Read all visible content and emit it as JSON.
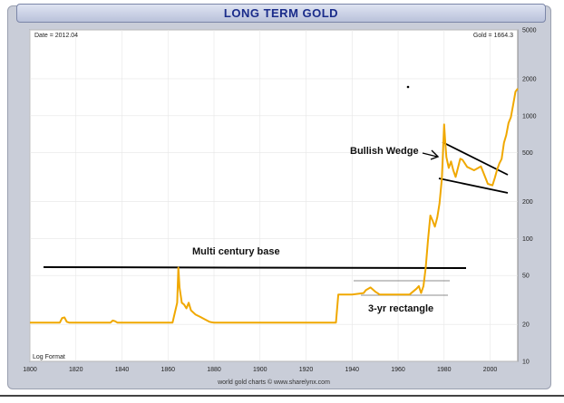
{
  "chart_data": {
    "type": "line",
    "title": "LONG TERM GOLD",
    "date_label": "Date = 2012.04",
    "value_label": "Gold = 1664.3",
    "scale_label": "Log Format",
    "footer": "world gold charts © www.sharelynx.com",
    "xlim": [
      1800,
      2012
    ],
    "ylim": [
      10,
      5000
    ],
    "yscale": "log",
    "x_ticks": [
      "1800",
      "1820",
      "1840",
      "1860",
      "1880",
      "1900",
      "1920",
      "1940",
      "1960",
      "1980",
      "2000"
    ],
    "y_ticks": [
      "10",
      "20",
      "50",
      "100",
      "200",
      "500",
      "1000",
      "2000",
      "5000"
    ],
    "series_color": "#f0a800",
    "series": [
      {
        "x": [
          1800,
          1813,
          1814,
          1815,
          1816,
          1817,
          1835,
          1836,
          1837,
          1838,
          1862,
          1863,
          1864,
          1864.5,
          1865,
          1866,
          1867,
          1868,
          1869,
          1870,
          1872,
          1874,
          1876,
          1878,
          1879,
          1880,
          1900,
          1933,
          1934,
          1935,
          1940,
          1945,
          1946,
          1948,
          1950,
          1952,
          1955,
          1960,
          1965,
          1968,
          1969,
          1970,
          1971,
          1972,
          1973,
          1974,
          1975,
          1976,
          1977,
          1978,
          1979,
          1980,
          1980.5,
          1981,
          1982,
          1983,
          1984,
          1985,
          1987,
          1988,
          1990,
          1993,
          1996,
          1999,
          2001,
          2002,
          2003,
          2004,
          2005,
          2006,
          2007,
          2008,
          2009,
          2010,
          2011,
          2012
        ],
        "values": [
          20.7,
          20.7,
          22.5,
          22.8,
          21,
          20.7,
          20.7,
          21.5,
          21.2,
          20.7,
          20.7,
          25,
          30,
          58,
          40,
          30,
          29,
          27,
          30,
          26,
          24,
          23,
          22,
          21,
          20.8,
          20.7,
          20.7,
          20.7,
          35,
          35,
          35,
          36,
          38,
          40,
          37,
          35,
          35,
          35,
          35,
          39,
          41,
          36,
          41,
          58,
          97,
          154,
          140,
          125,
          148,
          193,
          307,
          850,
          600,
          460,
          376,
          424,
          360,
          317,
          446,
          437,
          383,
          360,
          387,
          279,
          271,
          310,
          363,
          409,
          444,
          603,
          695,
          871,
          972,
          1224,
          1571,
          1664
        ]
      }
    ],
    "annotations": [
      {
        "text": "Multi century base"
      },
      {
        "text": "Bullish Wedge"
      },
      {
        "text": "3-yr rectangle"
      }
    ]
  }
}
